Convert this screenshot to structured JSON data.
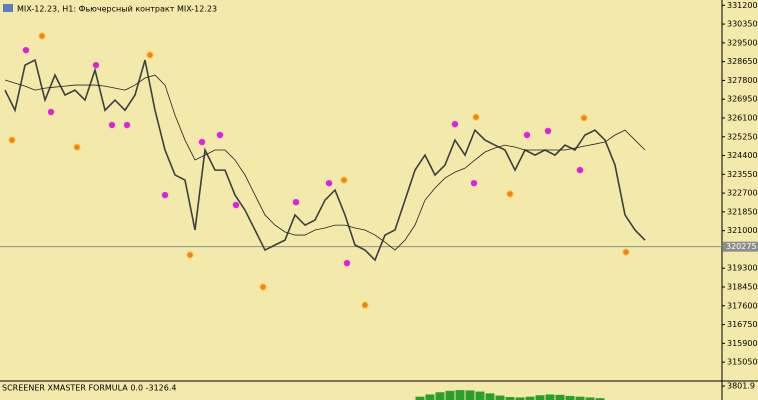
{
  "chart_data": {
    "type": "line",
    "title": "MIX-12.23, H1: Фьючерсный контракт MIX-12.23",
    "series": [
      {
        "color": "#3c4040",
        "values": [
          327360,
          326450,
          328490,
          328720,
          326910,
          328040,
          327140,
          327360,
          326910,
          328270,
          326450,
          326910,
          326450,
          327140,
          328720,
          326450,
          324650,
          323520,
          323290,
          321030,
          324650,
          323740,
          323740,
          322610,
          321930,
          321030,
          320120,
          320350,
          320570,
          321710,
          321250,
          321480,
          322380,
          322840,
          321710,
          320350,
          320120,
          319670,
          320800,
          321030,
          322380,
          323740,
          324420,
          323520,
          323970,
          325100,
          324420,
          325550,
          325100,
          324870,
          324650,
          323740,
          324650,
          324420,
          324650,
          324420,
          324870,
          324650,
          325330,
          325550,
          325100,
          323970,
          321710,
          321030,
          320570
        ]
      },
      {
        "color": "#222222",
        "values": [
          327820,
          327680,
          327540,
          327360,
          327450,
          327500,
          327540,
          327590,
          327590,
          327590,
          327540,
          327450,
          327360,
          327590,
          327910,
          328040,
          327590,
          326230,
          325100,
          324200,
          324420,
          324650,
          324650,
          324200,
          323520,
          322610,
          321710,
          321250,
          320940,
          320800,
          320800,
          321030,
          321120,
          321250,
          321250,
          321120,
          321030,
          320800,
          320480,
          320120,
          320570,
          321250,
          322380,
          322930,
          323380,
          323650,
          323830,
          324200,
          324560,
          324740,
          324870,
          324780,
          324650,
          324650,
          324650,
          324650,
          324650,
          324740,
          324830,
          324920,
          325010,
          325330,
          325550,
          325100,
          324650
        ]
      }
    ],
    "markers": [
      {
        "color": "#e020e0",
        "x": [
          2.1,
          4.6,
          9.1,
          10.7,
          12.2,
          16,
          19.7,
          21.5,
          23.1,
          29.1,
          32.4,
          34.2,
          45,
          46.9,
          52.2,
          54.3,
          57.5
        ],
        "values": [
          329170,
          326370,
          328490,
          325780,
          325780,
          322610,
          325010,
          325330,
          322160,
          322290,
          323150,
          319530,
          325820,
          323150,
          325330,
          325510,
          323740
        ]
      },
      {
        "color": "#f08020",
        "x": [
          0.7,
          3.7,
          7.2,
          14.5,
          18.5,
          25.8,
          33.9,
          36,
          47.1,
          50.5,
          57.9,
          62.1
        ],
        "values": [
          325100,
          329810,
          324780,
          328950,
          319900,
          318450,
          323290,
          317630,
          326140,
          322660,
          326100,
          320030
        ]
      }
    ],
    "ylim": [
      314240,
      331440
    ],
    "yticks": [
      331200,
      330350,
      329500,
      328650,
      327800,
      326950,
      326100,
      325250,
      324400,
      323550,
      322700,
      321850,
      321000,
      319300,
      318450,
      317600,
      316750,
      315900,
      315050
    ],
    "current_price": 320275,
    "indicator": {
      "label": "SCREENER XMASTER FORMULA 0.0 -3126.4",
      "color": "#2aa02a",
      "ylim": [
        0,
        3801.9
      ],
      "yticks": [
        3801.9
      ],
      "x": [
        41.5,
        42.5,
        43.5,
        44.5,
        45.5,
        46.5,
        47.5,
        48.5,
        49.5,
        50.5,
        51.5,
        52.5,
        53.5,
        54.5,
        55.5,
        56.5,
        57.5,
        58.5,
        59.5
      ],
      "values": [
        900,
        1500,
        2100,
        2500,
        2700,
        2600,
        2300,
        1800,
        1200,
        800,
        700,
        900,
        1300,
        1500,
        1400,
        1100,
        900,
        700,
        500
      ]
    }
  }
}
